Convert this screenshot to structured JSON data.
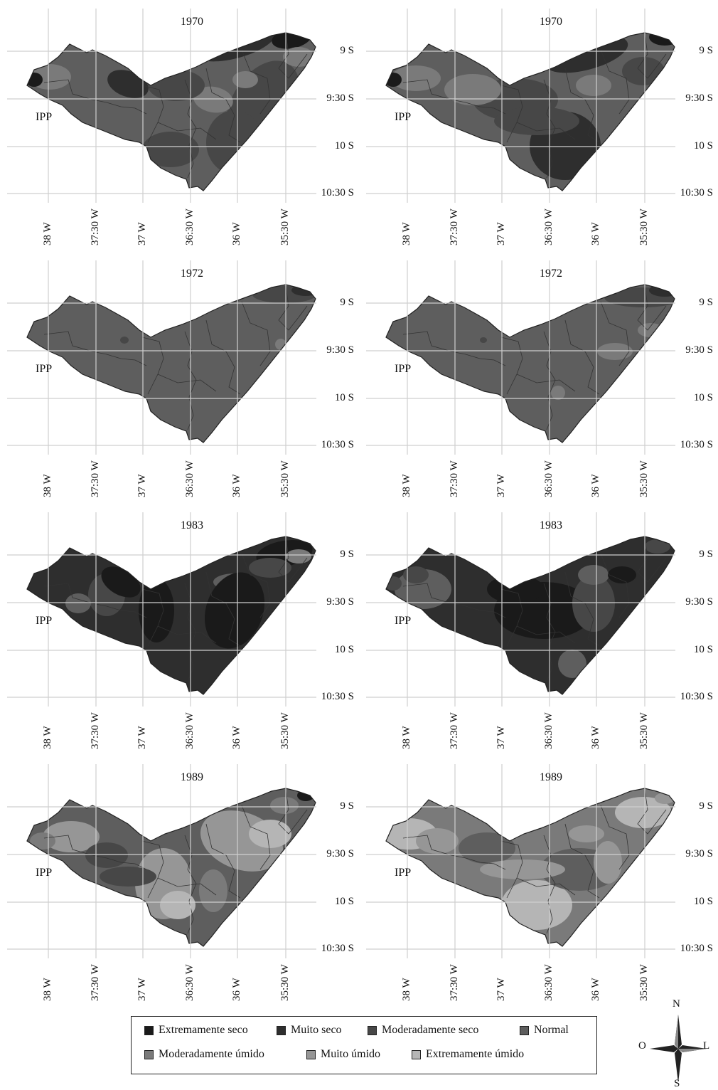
{
  "panels": [
    {
      "id": "p1970a",
      "year": "1970",
      "label": "IPP",
      "style": "p1970a"
    },
    {
      "id": "p1970b",
      "year": "1970",
      "label": "",
      "style": "p1970b"
    },
    {
      "id": "p1972a",
      "year": "1972",
      "label": "IPP",
      "style": "p1972a"
    },
    {
      "id": "p1972b",
      "year": "1972",
      "label": "",
      "style": "p1972b"
    },
    {
      "id": "p1983a",
      "year": "1983",
      "label": "IPP",
      "style": "p1983a"
    },
    {
      "id": "p1983b",
      "year": "1983",
      "label": "",
      "style": "p1983b"
    },
    {
      "id": "p1989a",
      "year": "1989",
      "label": "IPP",
      "style": "p1989a"
    },
    {
      "id": "p1989b",
      "year": "1989",
      "label": "",
      "style": "p1989b"
    }
  ],
  "panel_labels": [
    "IPP",
    "IPP",
    "IPP",
    "IPP",
    "IPP",
    "IPP",
    "IPP",
    "IPP"
  ],
  "lat_labels": [
    "9 S",
    "9:30 S",
    "10 S",
    "10:30 S"
  ],
  "lon_labels": [
    "38 W",
    "37:30 W",
    "37 W",
    "36:30 W",
    "36 W",
    "35:30 W"
  ],
  "legend": {
    "items": [
      {
        "label": "Extremamente seco",
        "color": "#1a1a1a"
      },
      {
        "label": "Muito seco",
        "color": "#2e2e2e"
      },
      {
        "label": "Moderadamente seco",
        "color": "#474747"
      },
      {
        "label": "Normal",
        "color": "#5e5e5e"
      },
      {
        "label": "Moderadamente úmido",
        "color": "#7a7a7a"
      },
      {
        "label": "Muito úmido",
        "color": "#969696"
      },
      {
        "label": "Extremamente úmido",
        "color": "#b5b5b5"
      }
    ]
  },
  "compass": {
    "north": "N",
    "south": "S",
    "west": "O",
    "east": "L"
  }
}
